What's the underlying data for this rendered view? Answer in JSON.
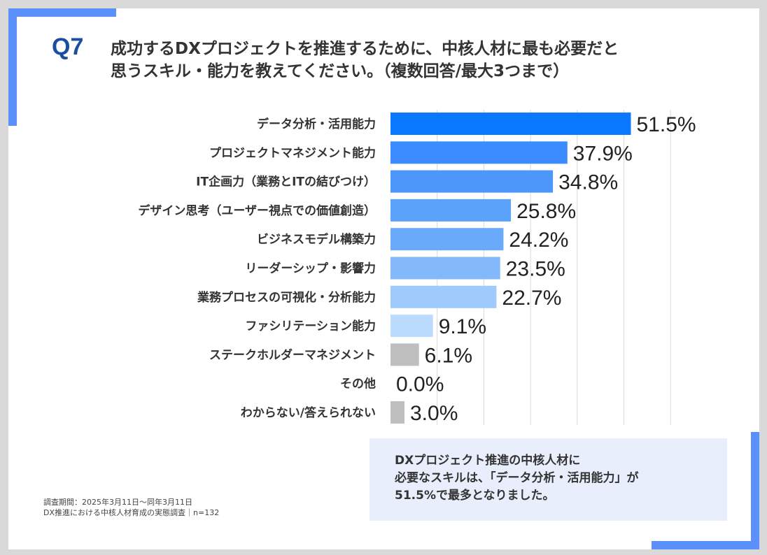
{
  "colors": {
    "accent": "#5b8ff9",
    "question_number": "#1a4fa0",
    "summary_bg": "#e8eefb",
    "gridline": "#d9d9d9"
  },
  "header": {
    "question_number": "Q7",
    "question_line1": "成功するDXプロジェクトを推進するために、中核人材に最も必要だと",
    "question_line2": "思うスキル・能力を教えてください。（複数回答/最大3つまで）"
  },
  "chart_data": {
    "type": "bar",
    "orientation": "horizontal",
    "title": "成功するDXプロジェクトを推進するために、中核人材に最も必要だと思うスキル・能力を教えてください。（複数回答/最大3つまで）",
    "unit": "%",
    "xlim": [
      0,
      60
    ],
    "grid": true,
    "categories": [
      "データ分析・活用能力",
      "プロジェクトマネジメント能力",
      "IT企画力（業務とITの結びつけ）",
      "デザイン思考（ユーザー視点での価値創造）",
      "ビジネスモデル構築力",
      "リーダーシップ・影響力",
      "業務プロセスの可視化・分析能力",
      "ファシリテーション能力",
      "ステークホルダーマネジメント",
      "その他",
      "わからない/答えられない"
    ],
    "values": [
      51.5,
      37.9,
      34.8,
      25.8,
      24.2,
      23.5,
      22.7,
      9.1,
      6.1,
      0.0,
      3.0
    ],
    "value_labels": [
      "51.5%",
      "37.9%",
      "34.8%",
      "25.8%",
      "24.2%",
      "23.5%",
      "22.7%",
      "9.1%",
      "6.1%",
      "0.0%",
      "3.0%"
    ],
    "bar_colors": [
      "#0a78ff",
      "#3a8cff",
      "#4d97fb",
      "#5ba2fb",
      "#6aaafb",
      "#83b9fb",
      "#9fcafc",
      "#bcdcfd",
      "#bfbfbf",
      "#bfbfbf",
      "#bfbfbf"
    ]
  },
  "summary": {
    "line1": "DXプロジェクト推進の中核人材に",
    "line2": "必要なスキルは、「データ分析・活用能力」が",
    "line3": "51.5%で最多となりました。"
  },
  "footnote": {
    "line1": "調査期間：2025年3月11日～同年3月11日",
    "line2": "DX推進における中核人材育成の実態調査｜n=132"
  }
}
